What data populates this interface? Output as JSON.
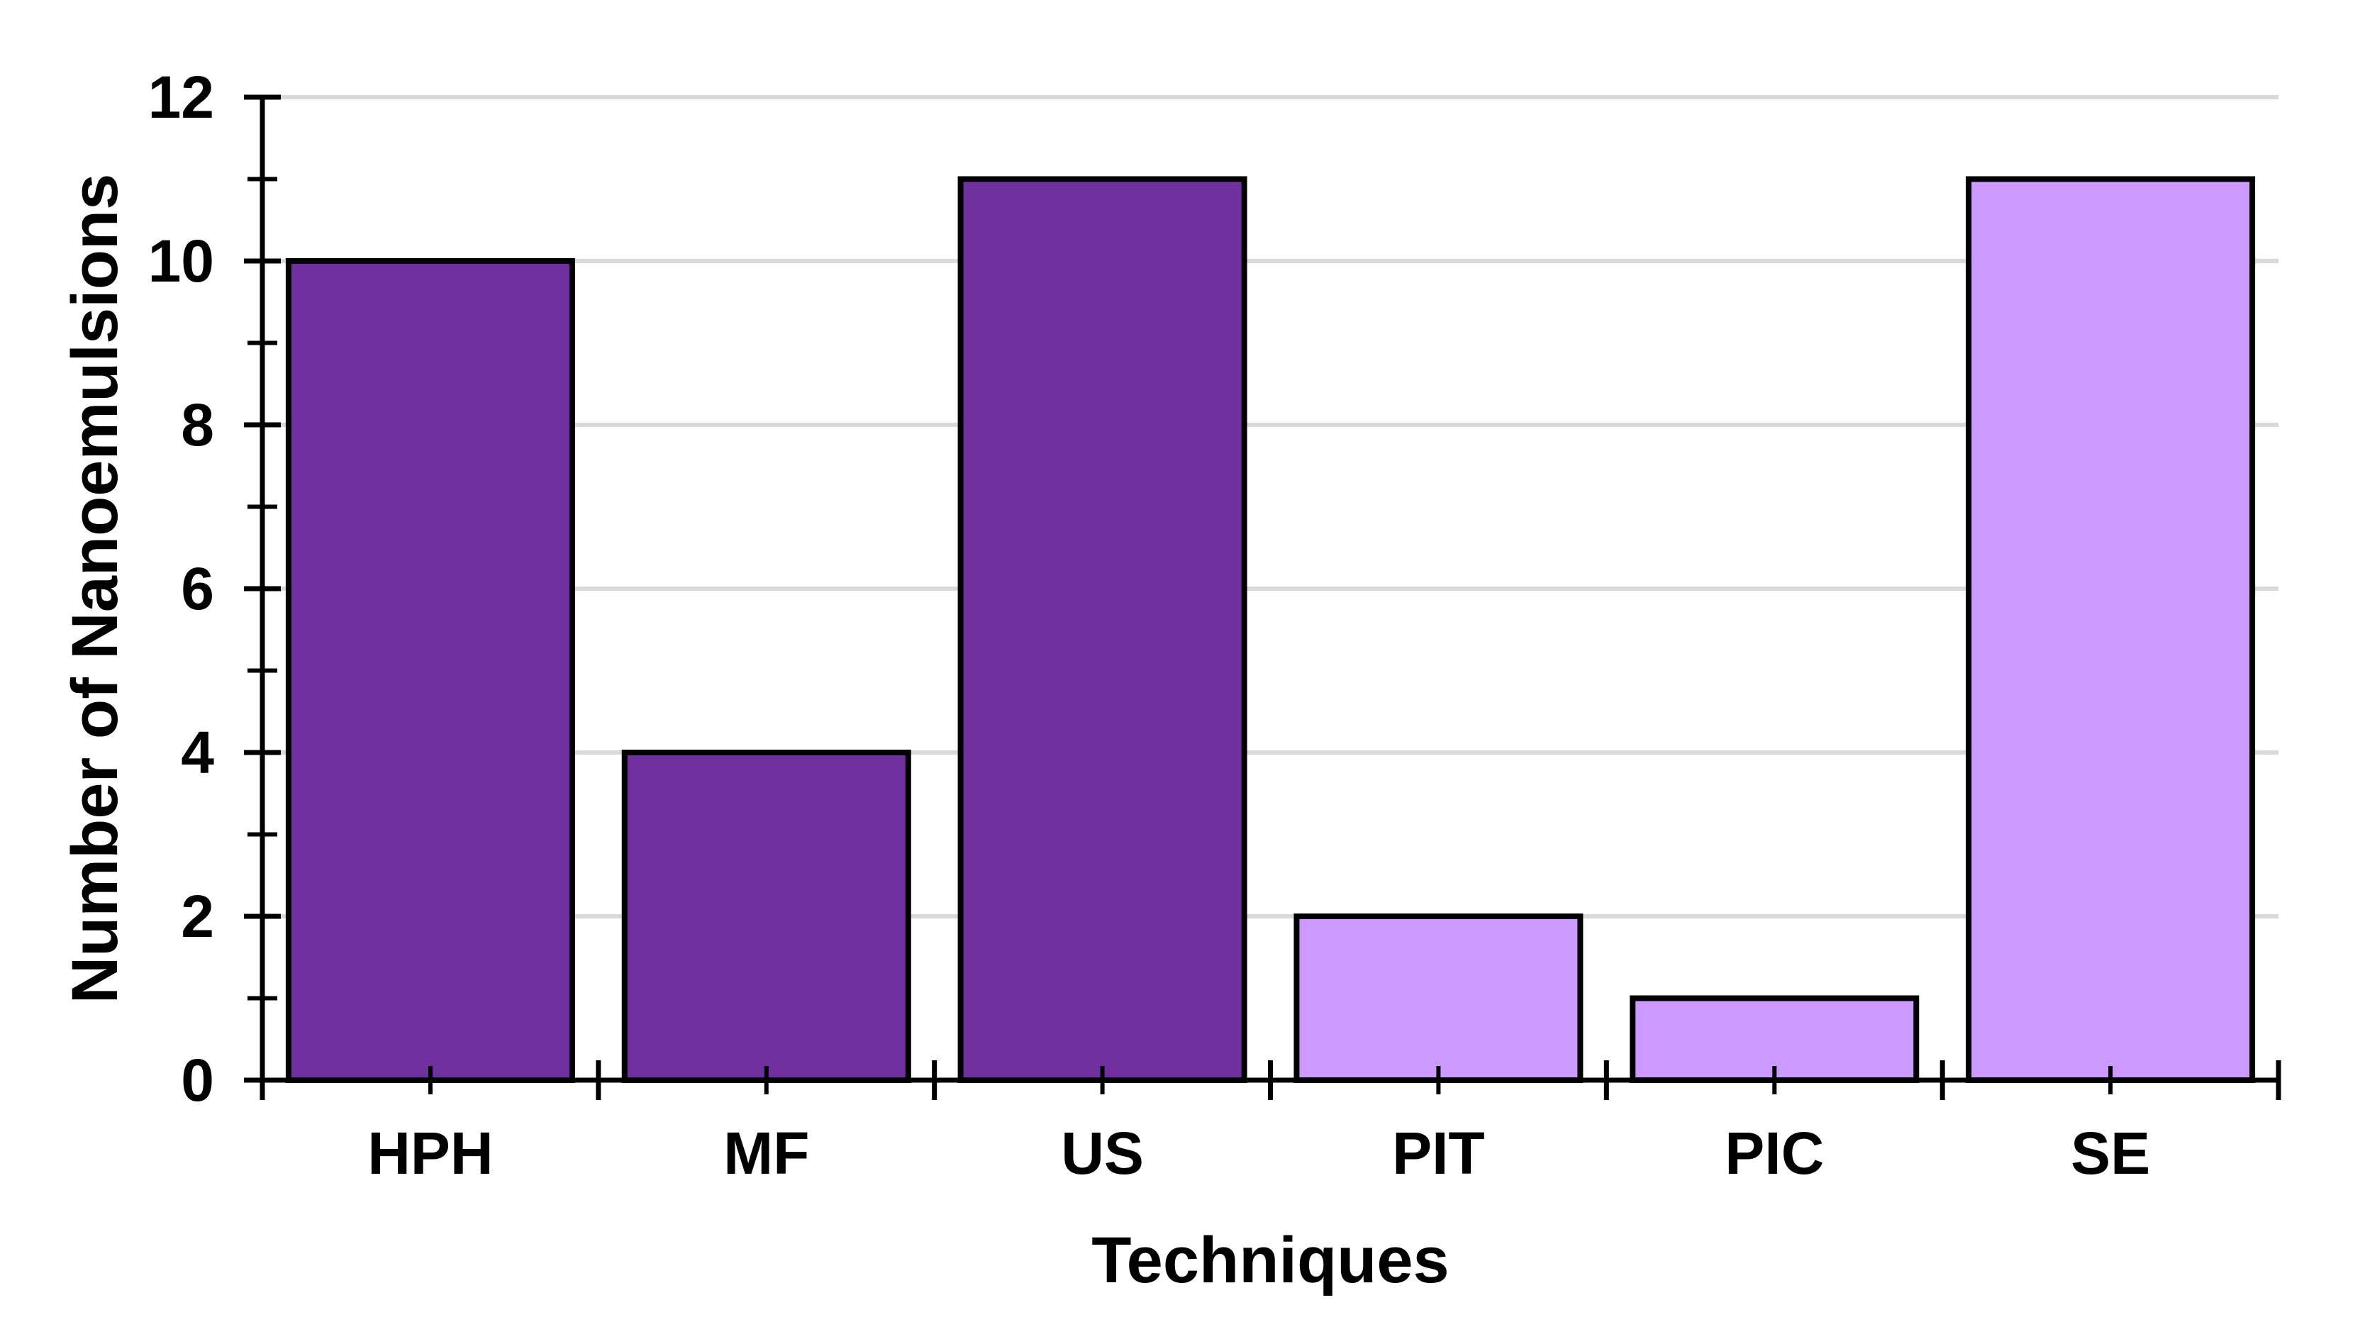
{
  "chart_data": {
    "type": "bar",
    "title": "",
    "categories": [
      "HPH",
      "MF",
      "US",
      "PIT",
      "PIC",
      "SE"
    ],
    "values": [
      10,
      4,
      11,
      2,
      1,
      11
    ],
    "bar_colors": [
      "#7030A0",
      "#7030A0",
      "#7030A0",
      "#CC99FF",
      "#CC99FF",
      "#CC99FF"
    ],
    "xlabel": "Techniques",
    "ylabel": "Number of Nanoemulsions",
    "ylim": [
      0,
      12
    ],
    "yticks_major": [
      0,
      2,
      4,
      6,
      8,
      10,
      12
    ],
    "ytick_labels": [
      "0",
      "2",
      "4",
      "6",
      "8",
      "10",
      "12"
    ],
    "yticks_minor": [
      1,
      3,
      5,
      7,
      9,
      11
    ],
    "grid": "horizontal gridlines at major y ticks",
    "legend": "none",
    "colors": {
      "bar_dark": "#7030A0",
      "bar_light": "#CC99FF",
      "bar_outline": "#000000",
      "axis": "#000000",
      "gridline": "#D9D9D9",
      "text": "#000000",
      "background": "#FFFFFF"
    }
  }
}
